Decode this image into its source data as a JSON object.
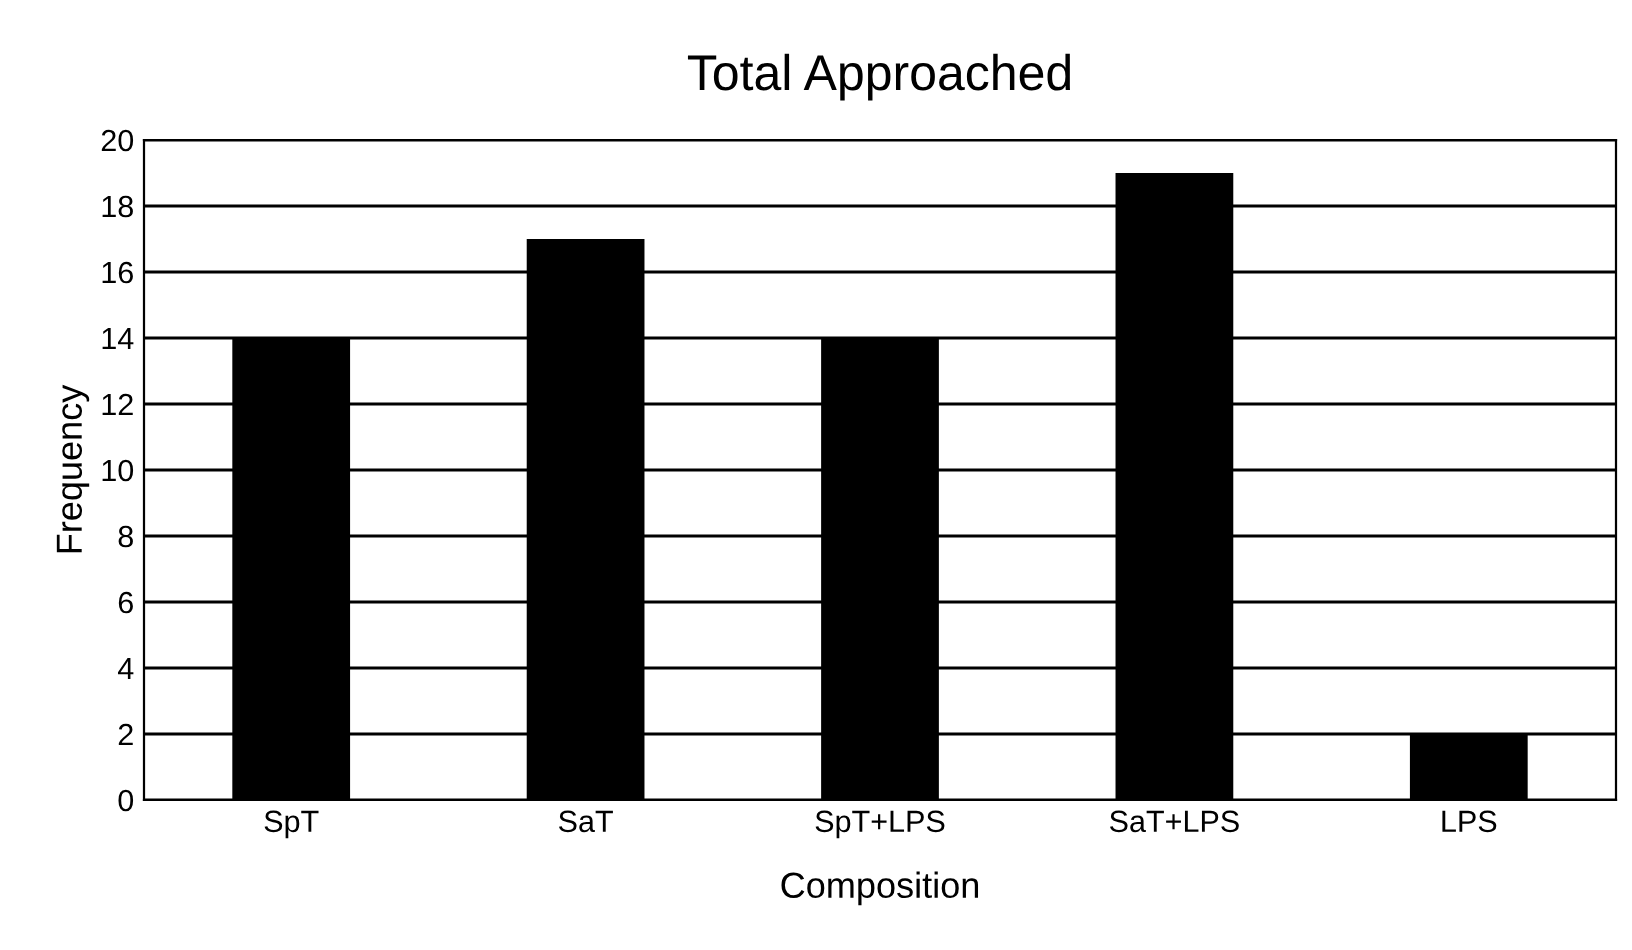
{
  "chart_data": {
    "type": "bar",
    "title": "Total Approached",
    "xlabel": "Composition",
    "ylabel": "Frequency",
    "categories": [
      "SpT",
      "SaT",
      "SpT+LPS",
      "SaT+LPS",
      "LPS"
    ],
    "values": [
      14,
      17,
      14,
      19,
      2
    ],
    "color": "#000000",
    "ylim": [
      0,
      20
    ],
    "yticks": [
      0,
      2,
      4,
      6,
      8,
      10,
      12,
      14,
      16,
      18,
      20
    ],
    "grid": "y",
    "legend": false
  }
}
